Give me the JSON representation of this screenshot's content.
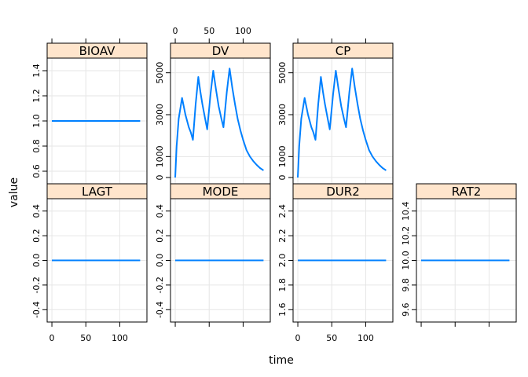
{
  "figure": {
    "xlabel": "time",
    "ylabel": "value",
    "colors": {
      "line": "#0080ff",
      "strip": "#ffe5cc",
      "grid": "#e6e6e6",
      "frame": "#000000"
    }
  },
  "chart_data": [
    {
      "type": "line",
      "title": "BIOAV",
      "xlim": [
        -7,
        140
      ],
      "ylim": [
        0.5,
        1.5
      ],
      "x_ticks": [
        0,
        50,
        100
      ],
      "y_ticks": [
        0.6,
        0.8,
        1.0,
        1.2,
        1.4
      ],
      "y_tick_labels": [
        "0.6",
        "0.8",
        "1.0",
        "1.2",
        "1.4"
      ],
      "x": [
        0,
        130
      ],
      "values": [
        1.0,
        1.0
      ]
    },
    {
      "type": "line",
      "title": "DV",
      "xlim": [
        -7,
        140
      ],
      "ylim": [
        -300,
        5700
      ],
      "x_ticks": [
        0,
        50,
        100
      ],
      "y_ticks": [
        0,
        1000,
        3000,
        5000
      ],
      "y_tick_labels": [
        "0",
        "1000",
        "3000",
        "5000"
      ],
      "x": [
        0,
        2,
        5,
        10,
        15,
        20,
        23,
        26,
        30,
        34,
        37,
        40,
        44,
        47,
        52,
        56,
        60,
        64,
        68,
        71,
        76,
        80,
        84,
        88,
        92,
        96,
        100,
        105,
        110,
        115,
        120,
        125,
        130
      ],
      "values": [
        0,
        1500,
        2800,
        3800,
        3000,
        2400,
        2150,
        1800,
        3500,
        4800,
        4100,
        3500,
        2800,
        2300,
        4000,
        5100,
        4200,
        3400,
        2800,
        2400,
        4100,
        5200,
        4300,
        3500,
        2800,
        2250,
        1800,
        1300,
        1000,
        780,
        600,
        450,
        340
      ]
    },
    {
      "type": "line",
      "title": "CP",
      "xlim": [
        -7,
        140
      ],
      "ylim": [
        -300,
        5700
      ],
      "x_ticks": [
        0,
        50,
        100
      ],
      "y_ticks": [
        0,
        1000,
        3000,
        5000
      ],
      "y_tick_labels": [
        "0",
        "1000",
        "3000",
        "5000"
      ],
      "x": [
        0,
        2,
        5,
        10,
        15,
        20,
        23,
        26,
        30,
        34,
        37,
        40,
        44,
        47,
        52,
        56,
        60,
        64,
        68,
        71,
        76,
        80,
        84,
        88,
        92,
        96,
        100,
        105,
        110,
        115,
        120,
        125,
        130
      ],
      "values": [
        0,
        1500,
        2800,
        3800,
        3000,
        2400,
        2150,
        1800,
        3500,
        4800,
        4100,
        3500,
        2800,
        2300,
        4000,
        5100,
        4200,
        3400,
        2800,
        2400,
        4100,
        5200,
        4300,
        3500,
        2800,
        2250,
        1800,
        1300,
        1000,
        780,
        600,
        450,
        340
      ]
    },
    {
      "type": "line",
      "title": "LAGT",
      "xlim": [
        -7,
        140
      ],
      "ylim": [
        -0.5,
        0.5
      ],
      "x_ticks": [
        0,
        50,
        100
      ],
      "y_ticks": [
        -0.4,
        -0.2,
        0.0,
        0.2,
        0.4
      ],
      "y_tick_labels": [
        "-0.4",
        "-0.2",
        "0.0",
        "0.2",
        "0.4"
      ],
      "x": [
        0,
        130
      ],
      "values": [
        0,
        0
      ]
    },
    {
      "type": "line",
      "title": "MODE",
      "xlim": [
        -7,
        140
      ],
      "ylim": [
        -0.5,
        0.5
      ],
      "x_ticks": [
        0,
        50,
        100
      ],
      "y_ticks": [
        -0.4,
        -0.2,
        0.0,
        0.2,
        0.4
      ],
      "y_tick_labels": [
        "-0.4",
        "-0.2",
        "0.0",
        "0.2",
        "0.4"
      ],
      "x": [
        0,
        130
      ],
      "values": [
        0,
        0
      ]
    },
    {
      "type": "line",
      "title": "DUR2",
      "xlim": [
        -7,
        140
      ],
      "ylim": [
        1.5,
        2.5
      ],
      "x_ticks": [
        0,
        50,
        100
      ],
      "y_ticks": [
        1.6,
        1.8,
        2.0,
        2.2,
        2.4
      ],
      "y_tick_labels": [
        "1.6",
        "1.8",
        "2.0",
        "2.2",
        "2.4"
      ],
      "x": [
        0,
        130
      ],
      "values": [
        2,
        2
      ]
    },
    {
      "type": "line",
      "title": "RAT2",
      "xlim": [
        -7,
        140
      ],
      "ylim": [
        9.5,
        10.5
      ],
      "x_ticks": [
        0,
        50,
        100
      ],
      "y_ticks": [
        9.6,
        9.8,
        10.0,
        10.2,
        10.4
      ],
      "y_tick_labels": [
        "9.6",
        "9.8",
        "10.0",
        "10.2",
        "10.4"
      ],
      "x": [
        0,
        130
      ],
      "values": [
        10,
        10
      ]
    }
  ]
}
